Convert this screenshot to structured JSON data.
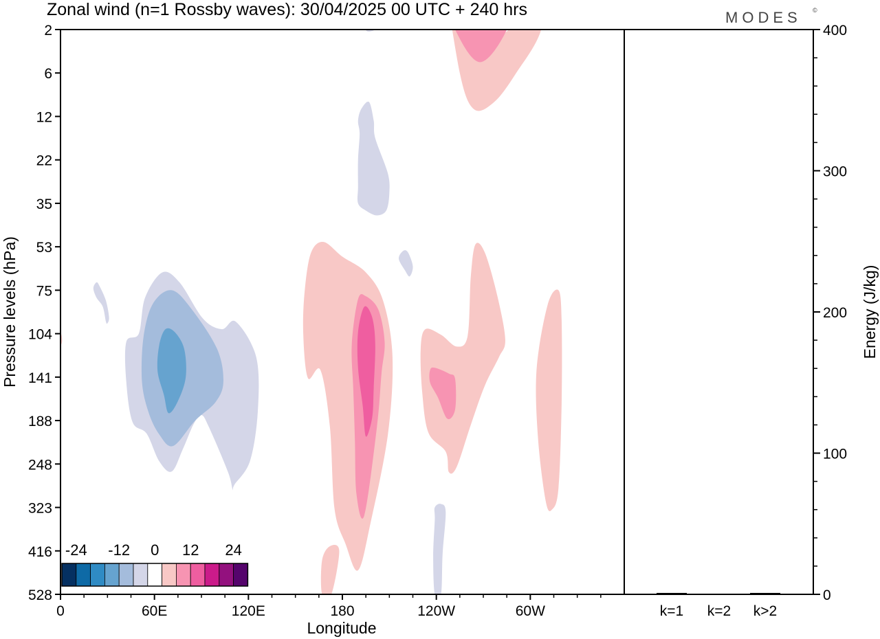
{
  "chart_data": {
    "type": "heatmap",
    "title": "Zonal wind (n=1 Rossby waves):  30/04/2025  00 UTC  + 240 hrs",
    "brand": "MODES",
    "brand_mark": "©",
    "xlabel": "Longitude",
    "ylabel": "Pressure levels (hPa)",
    "y2label": "Energy (J/kg)",
    "x_ticks": [
      "0",
      "60E",
      "120E",
      "180",
      "120W",
      "60W"
    ],
    "x_tick_values": [
      0,
      60,
      120,
      180,
      240,
      300
    ],
    "xlim": [
      0,
      360
    ],
    "y_levels": [
      "2",
      "6",
      "12",
      "22",
      "35",
      "53",
      "75",
      "104",
      "141",
      "188",
      "248",
      "323",
      "416",
      "528"
    ],
    "y2_ticks": [
      "0",
      "100",
      "200",
      "300",
      "400"
    ],
    "y2lim": [
      0,
      400
    ],
    "energy_bars": {
      "categories": [
        "k=1",
        "k=2",
        "k>2"
      ],
      "values": [
        1,
        0,
        1
      ]
    },
    "colorbar": {
      "tick_labels": [
        "-24",
        "-12",
        "0",
        "12",
        "24"
      ],
      "colors": [
        "#053061",
        "#0e6aa6",
        "#2f8bc4",
        "#66a3cf",
        "#a4bcdc",
        "#d4d6e8",
        "#ffffff",
        "#f8c8c6",
        "#f794b2",
        "#ef5ea0",
        "#cb1b8a",
        "#93117e",
        "#55046c"
      ]
    },
    "contours": [
      {
        "level": -4,
        "color": "#d4d6e8",
        "points": [
          [
            41,
            -1
          ],
          [
            52,
            1
          ],
          [
            78,
            2
          ],
          [
            100,
            1
          ],
          [
            122,
            0
          ],
          [
            142,
            1
          ]
        ]
      },
      {
        "level": -4,
        "color": "#d4d6e8",
        "points": [
          [
            195,
            2
          ],
          [
            200,
            0
          ],
          [
            205,
            1
          ],
          [
            201,
            2
          ]
        ]
      },
      {
        "level": -4,
        "color": "#d4d6e8",
        "points": [
          [
            190,
            13
          ],
          [
            192,
            11
          ],
          [
            197,
            10
          ],
          [
            200,
            13
          ],
          [
            201,
            17
          ],
          [
            209,
            26
          ],
          [
            210,
            32
          ],
          [
            208,
            38
          ],
          [
            202,
            40
          ],
          [
            195,
            38
          ],
          [
            190,
            35
          ],
          [
            190,
            30
          ],
          [
            190,
            22
          ],
          [
            191,
            16
          ]
        ]
      },
      {
        "level": -4,
        "color": "#d4d6e8",
        "points": [
          [
            21,
            74
          ],
          [
            23,
            71
          ],
          [
            25,
            73
          ],
          [
            29,
            82
          ],
          [
            31,
            93
          ],
          [
            30,
            97
          ],
          [
            29,
            96
          ],
          [
            27,
            86
          ],
          [
            23,
            80
          ]
        ]
      },
      {
        "level": -4,
        "color": "#d4d6e8",
        "points": [
          [
            216,
            59
          ],
          [
            219,
            55
          ],
          [
            222,
            56
          ],
          [
            225,
            63
          ],
          [
            223,
            68
          ],
          [
            220,
            65
          ]
        ]
      },
      {
        "level": -4,
        "color": "#d4d6e8",
        "points": [
          [
            50,
            104
          ],
          [
            54,
            80
          ],
          [
            65,
            66
          ],
          [
            76,
            71
          ],
          [
            91,
            94
          ],
          [
            103,
            101
          ],
          [
            112,
            96
          ],
          [
            125,
            124
          ],
          [
            126,
            178
          ],
          [
            121,
            244
          ],
          [
            111,
            284
          ],
          [
            110,
            293
          ],
          [
            107,
            262
          ],
          [
            95,
            198
          ],
          [
            90,
            182
          ],
          [
            85,
            193
          ],
          [
            78,
            228
          ],
          [
            71,
            261
          ],
          [
            63,
            244
          ],
          [
            55,
            206
          ],
          [
            46,
            190
          ],
          [
            42,
            146
          ],
          [
            42,
            111
          ]
        ]
      },
      {
        "level": -4,
        "color": "#d4d6e8",
        "points": [
          [
            239,
            323
          ],
          [
            243,
            317
          ],
          [
            246,
            333
          ],
          [
            244,
            423
          ],
          [
            243,
            528
          ],
          [
            239,
            528
          ],
          [
            238,
            430
          ],
          [
            239,
            350
          ]
        ]
      },
      {
        "level": -8,
        "color": "#a4bcdc",
        "points": [
          [
            53,
            107
          ],
          [
            59,
            84
          ],
          [
            71,
            75
          ],
          [
            84,
            88
          ],
          [
            100,
            117
          ],
          [
            104,
            146
          ],
          [
            99,
            168
          ],
          [
            86,
            188
          ],
          [
            72,
            223
          ],
          [
            63,
            207
          ],
          [
            56,
            178
          ],
          [
            52,
            145
          ]
        ]
      },
      {
        "level": -12,
        "color": "#66a3cf",
        "points": [
          [
            63,
            114
          ],
          [
            67,
            101
          ],
          [
            73,
            103
          ],
          [
            79,
            117
          ],
          [
            80,
            141
          ],
          [
            75,
            167
          ],
          [
            69,
            180
          ],
          [
            66,
            160
          ],
          [
            62,
            136
          ]
        ]
      },
      {
        "level": 4,
        "color": "#f8c8c6",
        "points": [
          [
            246,
            -3
          ],
          [
            260,
            2
          ],
          [
            276,
            3
          ],
          [
            300,
            0
          ],
          [
            310,
            -3
          ],
          [
            307,
            2
          ],
          [
            291,
            6
          ],
          [
            277,
            10
          ],
          [
            264,
            11
          ],
          [
            255,
            6
          ]
        ]
      },
      {
        "level": 4,
        "color": "#f8c8c6",
        "points": [
          [
            0,
            104
          ],
          [
            1,
            111
          ],
          [
            -2,
            119
          ]
        ]
      },
      {
        "level": 4,
        "color": "#f8c8c6",
        "points": [
          [
            160,
            56
          ],
          [
            168,
            51
          ],
          [
            180,
            58
          ],
          [
            195,
            66
          ],
          [
            206,
            82
          ],
          [
            212,
            124
          ],
          [
            209,
            208
          ],
          [
            198,
            356
          ],
          [
            190,
            466
          ],
          [
            182,
            401
          ],
          [
            175,
            326
          ],
          [
            172,
            196
          ],
          [
            166,
            135
          ],
          [
            158,
            142
          ],
          [
            155,
            104
          ],
          [
            156,
            75
          ]
        ]
      },
      {
        "level": 4,
        "color": "#f8c8c6",
        "points": [
          [
            233,
            101
          ],
          [
            243,
            105
          ],
          [
            253,
            115
          ],
          [
            260,
            106
          ],
          [
            262,
            68
          ],
          [
            265,
            52
          ],
          [
            271,
            56
          ],
          [
            279,
            79
          ],
          [
            284,
            109
          ],
          [
            280,
            124
          ],
          [
            271,
            150
          ],
          [
            262,
            194
          ],
          [
            253,
            253
          ],
          [
            248,
            262
          ],
          [
            246,
            231
          ],
          [
            235,
            205
          ],
          [
            231,
            158
          ],
          [
            230,
            117
          ]
        ]
      },
      {
        "level": 4,
        "color": "#f8c8c6",
        "points": [
          [
            178,
            416
          ],
          [
            173,
            528
          ],
          [
            167,
            528
          ],
          [
            167,
            441
          ],
          [
            172,
            406
          ]
        ]
      },
      {
        "level": 4,
        "color": "#f8c8c6",
        "points": [
          [
            320,
            95
          ],
          [
            318,
            75
          ],
          [
            311,
            85
          ],
          [
            304,
            135
          ],
          [
            305,
            214
          ],
          [
            310,
            314
          ],
          [
            314,
            327
          ],
          [
            318,
            290
          ],
          [
            320,
            170
          ]
        ]
      },
      {
        "level": 8,
        "color": "#f794b2",
        "points": [
          [
            244,
            -2
          ],
          [
            252,
            2
          ],
          [
            268,
            5
          ],
          [
            285,
            2
          ],
          [
            290,
            -2
          ]
        ]
      },
      {
        "level": 8,
        "color": "#f794b2",
        "points": [
          [
            190,
            81
          ],
          [
            195,
            79
          ],
          [
            203,
            88
          ],
          [
            207,
            111
          ],
          [
            205,
            138
          ],
          [
            202,
            198
          ],
          [
            194,
            340
          ],
          [
            189,
            300
          ],
          [
            188,
            215
          ],
          [
            187,
            155
          ],
          [
            186,
            113
          ]
        ]
      },
      {
        "level": 8,
        "color": "#f794b2",
        "points": [
          [
            239,
            133
          ],
          [
            248,
            138
          ],
          [
            252,
            143
          ],
          [
            252,
            176
          ],
          [
            247,
            186
          ],
          [
            241,
            163
          ],
          [
            236,
            147
          ],
          [
            236,
            135
          ]
        ]
      },
      {
        "level": 12,
        "color": "#ef5ea0",
        "points": [
          [
            261,
            -3
          ],
          [
            268,
            1
          ],
          [
            275,
            0
          ],
          [
            284,
            -2
          ]
        ]
      },
      {
        "level": 12,
        "color": "#ef5ea0",
        "points": [
          [
            194,
            86
          ],
          [
            199,
            93
          ],
          [
            201,
            113
          ],
          [
            200,
            153
          ],
          [
            199,
            185
          ],
          [
            195,
            210
          ],
          [
            193,
            172
          ],
          [
            190,
            133
          ],
          [
            190,
            103
          ]
        ]
      }
    ]
  }
}
